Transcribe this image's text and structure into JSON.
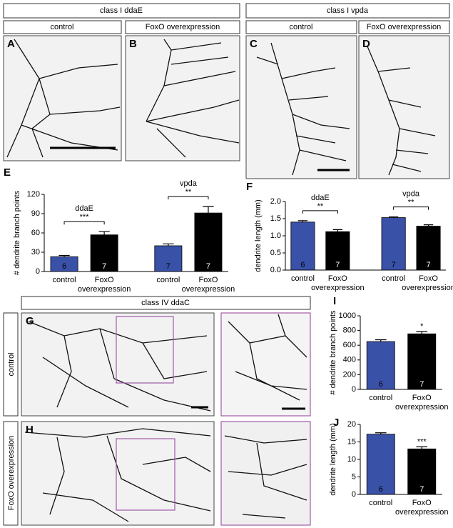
{
  "headers": [
    "class I ddaE",
    "class I vpda",
    "class IV ddaC"
  ],
  "subheaders": [
    "control",
    "FoxO overexpression",
    "control",
    "FoxO overexpression"
  ],
  "image_letters": [
    "A",
    "B",
    "C",
    "D",
    "G",
    "H"
  ],
  "row_labels": [
    "control",
    "FoxO overexpression"
  ],
  "chart_data": [
    {
      "type": "bar",
      "label": "E",
      "y_label": "# dendrite branch points",
      "categories": [
        "control",
        "FoxO overexpression",
        "control",
        "FoxO overexpression"
      ],
      "values": [
        23,
        57,
        40,
        91
      ],
      "errors": [
        2,
        5,
        3,
        10
      ],
      "n_labels": [
        "6",
        "7",
        "7",
        "7"
      ],
      "colors": [
        "#3a51a8",
        "#000000",
        "#3a51a8",
        "#000000"
      ],
      "ylim": [
        0,
        120
      ],
      "yticks": [
        0,
        30,
        60,
        90,
        120
      ],
      "brackets": [
        {
          "label": "ddaE",
          "significance": "***"
        },
        {
          "label": "vpda",
          "significance": "**"
        }
      ]
    },
    {
      "type": "bar",
      "label": "F",
      "y_label": "dendrite length (mm)",
      "categories": [
        "control",
        "FoxO overexpression",
        "control",
        "FoxO overexpression"
      ],
      "values": [
        1.4,
        1.12,
        1.53,
        1.28
      ],
      "errors": [
        0.04,
        0.06,
        0.02,
        0.04
      ],
      "n_labels": [
        "6",
        "7",
        "7",
        "7"
      ],
      "colors": [
        "#3a51a8",
        "#000000",
        "#3a51a8",
        "#000000"
      ],
      "ylim": [
        0,
        2
      ],
      "yticks": [
        {
          "value": 0,
          "label": "0.0"
        },
        0.5,
        {
          "value": 1,
          "label": "1.0"
        },
        1.5,
        {
          "value": 2,
          "label": "2.0"
        }
      ],
      "brackets": [
        {
          "label": "ddaE",
          "significance": "**"
        },
        {
          "label": "vpda",
          "significance": "**"
        }
      ]
    },
    {
      "type": "bar",
      "label": "I",
      "y_label": "# dendrite branch points",
      "categories": [
        "control",
        "FoxO overexpression"
      ],
      "values": [
        650,
        755
      ],
      "errors": [
        25,
        30
      ],
      "n_labels": [
        "6",
        "7"
      ],
      "colors": [
        "#3a51a8",
        "#000000"
      ],
      "ylim": [
        0,
        1000
      ],
      "yticks": [
        0,
        200,
        400,
        600,
        800,
        1000
      ],
      "significance": "*"
    },
    {
      "type": "bar",
      "label": "J",
      "y_label": "dendrite length (mm)",
      "categories": [
        "control",
        "FoxO overexpression"
      ],
      "values": [
        17.2,
        13
      ],
      "errors": [
        0.4,
        0.6
      ],
      "n_labels": [
        "6",
        "7"
      ],
      "colors": [
        "#3a51a8",
        "#000000"
      ],
      "ylim": [
        0,
        20
      ],
      "yticks": [
        0,
        5,
        10,
        15,
        20
      ],
      "significance": "***"
    }
  ]
}
